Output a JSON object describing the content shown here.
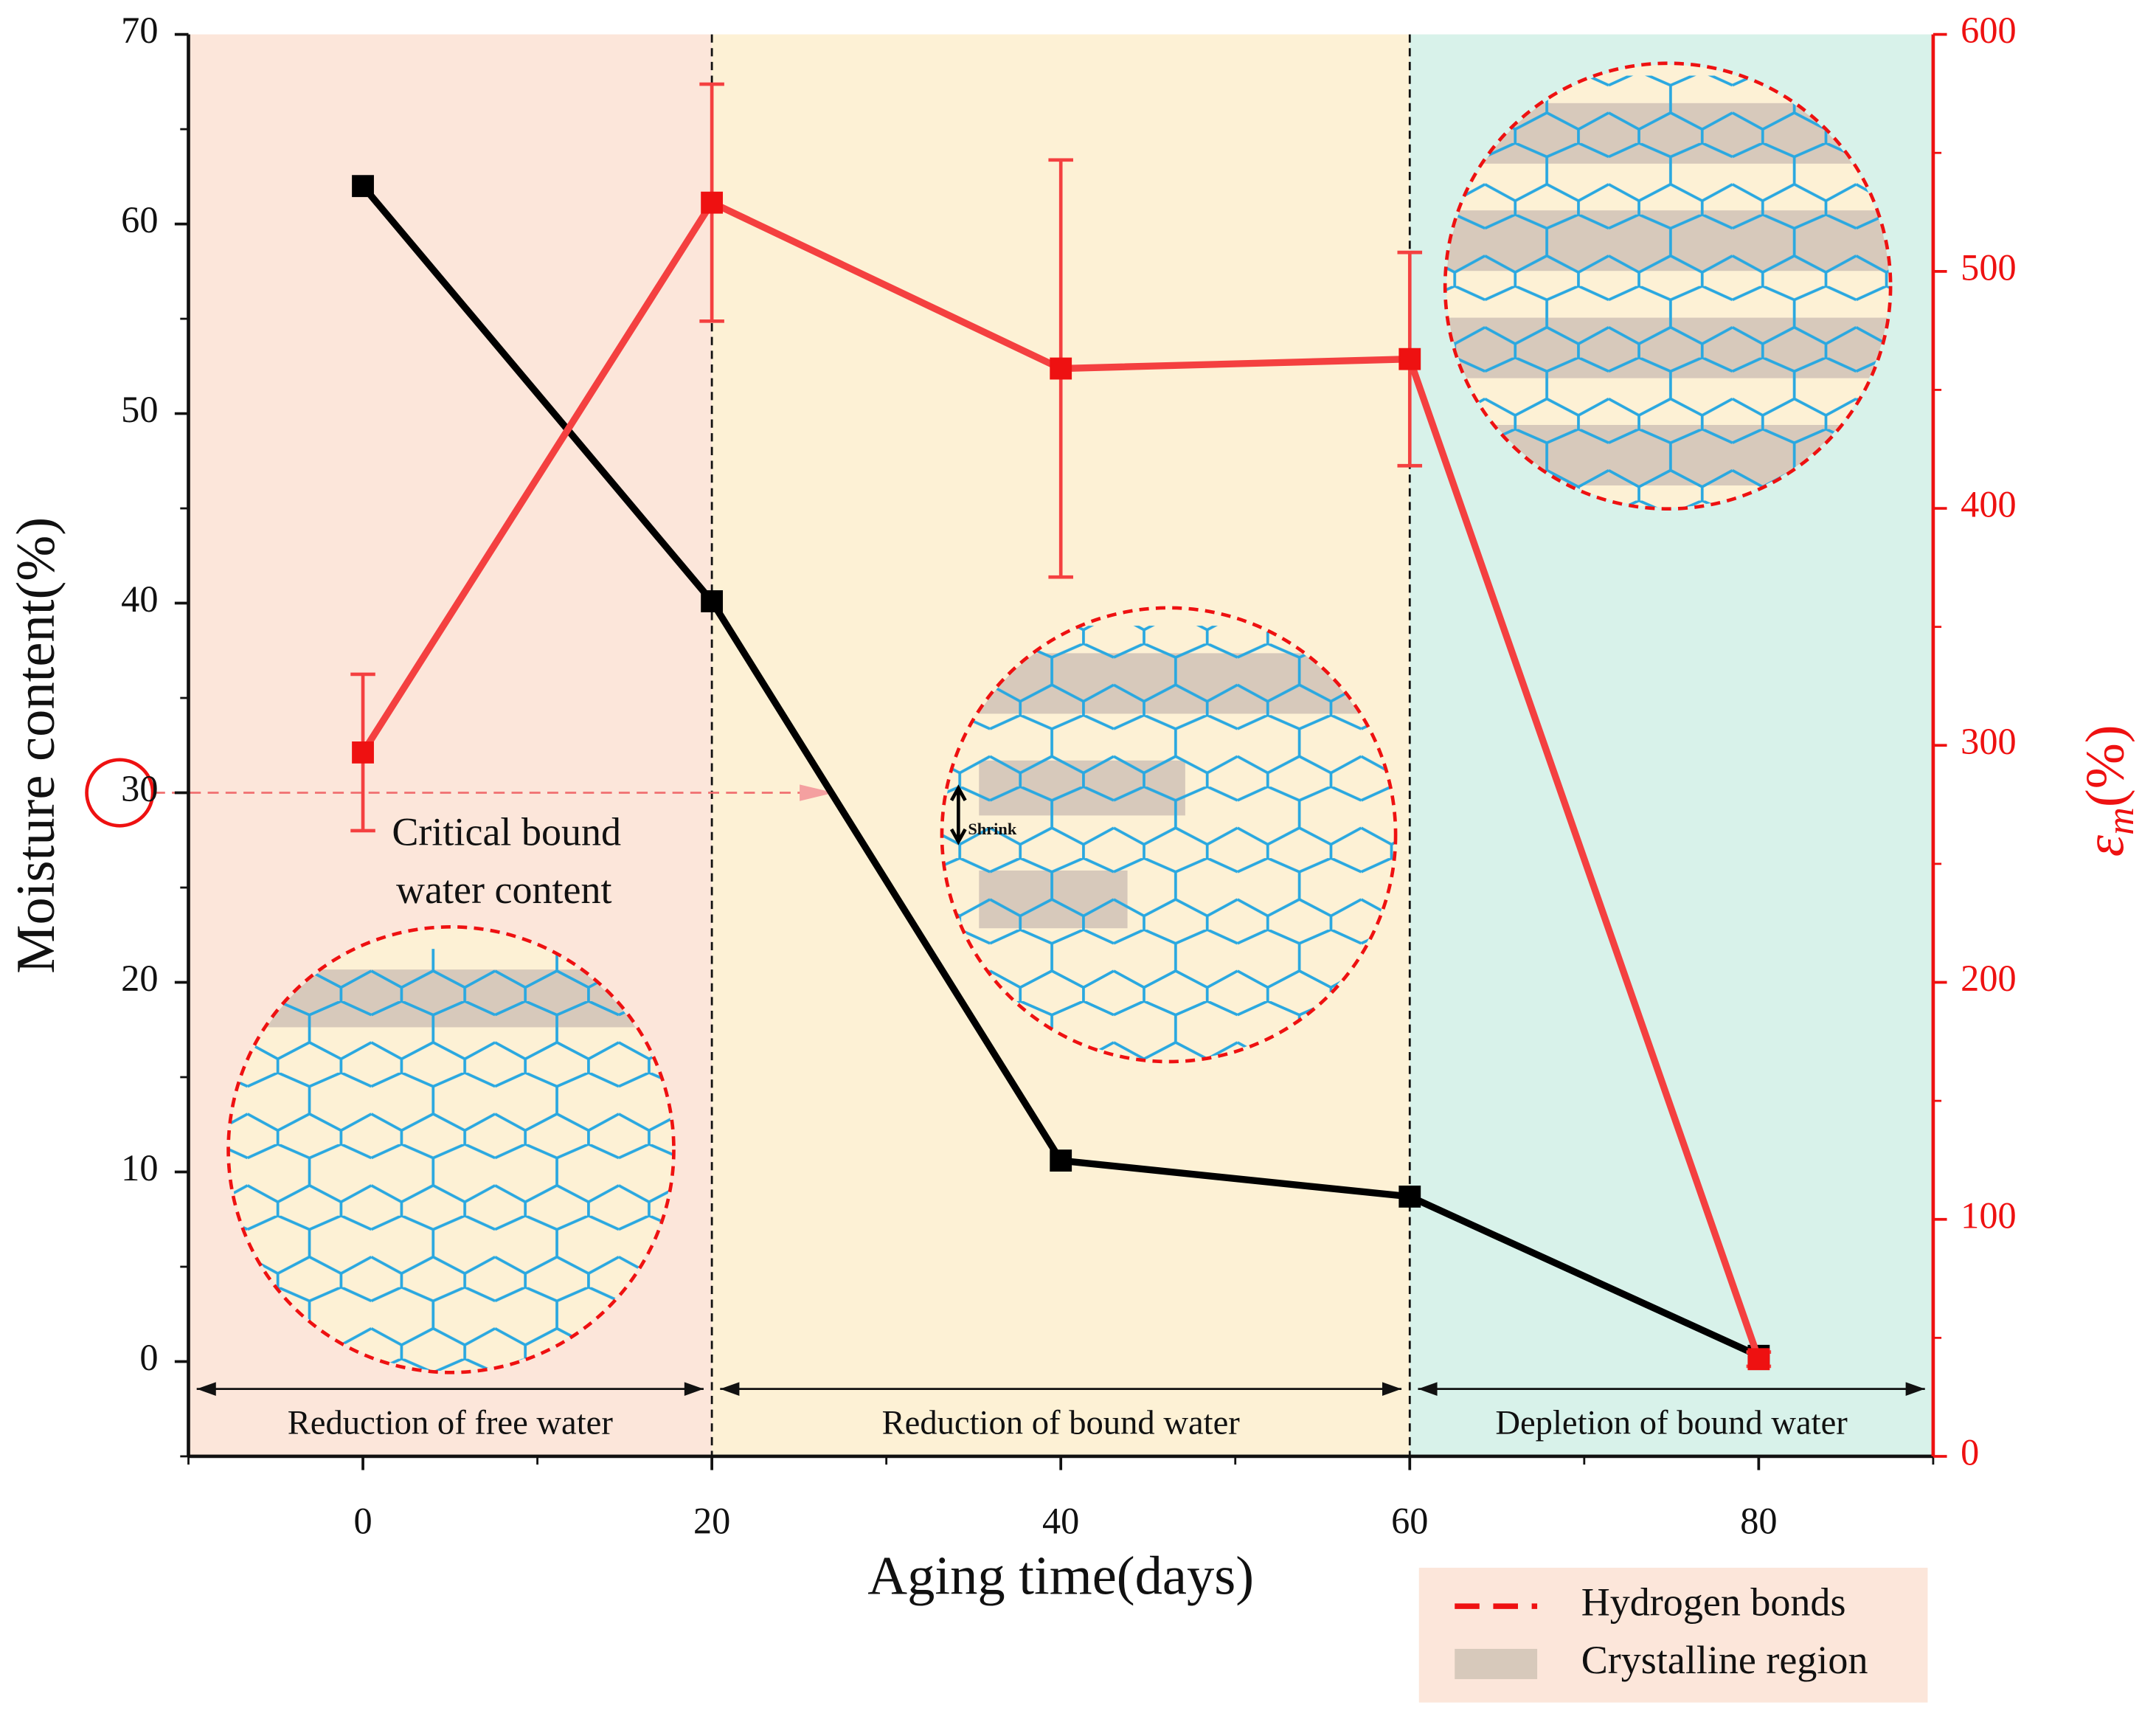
{
  "chart_data": {
    "type": "line",
    "x_label": "Aging time(days)",
    "y_label": "Moisture content(%)",
    "y2_label": {
      "symbol": "ε",
      "subscript": "m",
      "unit": "(%)"
    },
    "x": [
      0,
      20,
      40,
      60,
      80
    ],
    "series": [
      {
        "color": "#000000",
        "values": [
          62,
          40.1,
          10.6,
          8.7,
          0.3
        ]
      },
      {
        "color": "#f44040",
        "axis": "y2",
        "values": [
          297,
          529,
          459,
          463,
          41
        ],
        "errors": [
          33,
          50,
          88,
          45,
          3
        ]
      }
    ],
    "xlim": [
      -10,
      90
    ],
    "xticks": [
      0,
      20,
      40,
      60,
      80
    ],
    "ylim": [
      -5,
      70
    ],
    "yticks": [
      0,
      10,
      20,
      30,
      40,
      50,
      60,
      70
    ],
    "y2lim": [
      0,
      600
    ],
    "y2ticks": [
      0,
      100,
      200,
      300,
      400,
      500,
      600
    ],
    "y2_color": "#ee1111",
    "regions": [
      {
        "label": "Reduction of free water",
        "start": -10,
        "end": 20,
        "color": "#fce6da"
      },
      {
        "label": "Reduction of bound water",
        "start": 20,
        "end": 60,
        "color": "#fdf1d5"
      },
      {
        "label": "Depletion of bound water",
        "start": 60,
        "end": 90,
        "color": "#d8f2ea"
      }
    ],
    "reference": {
      "y": 30,
      "x_end": 27,
      "lines": [
        "Critical bound",
        "water content"
      ]
    },
    "inset_note": "Shrink",
    "legend": [
      {
        "name": "Hydrogen bonds",
        "color": "#ee1111"
      },
      {
        "name": "Crystalline region",
        "color": "#d7c9bb"
      }
    ]
  }
}
